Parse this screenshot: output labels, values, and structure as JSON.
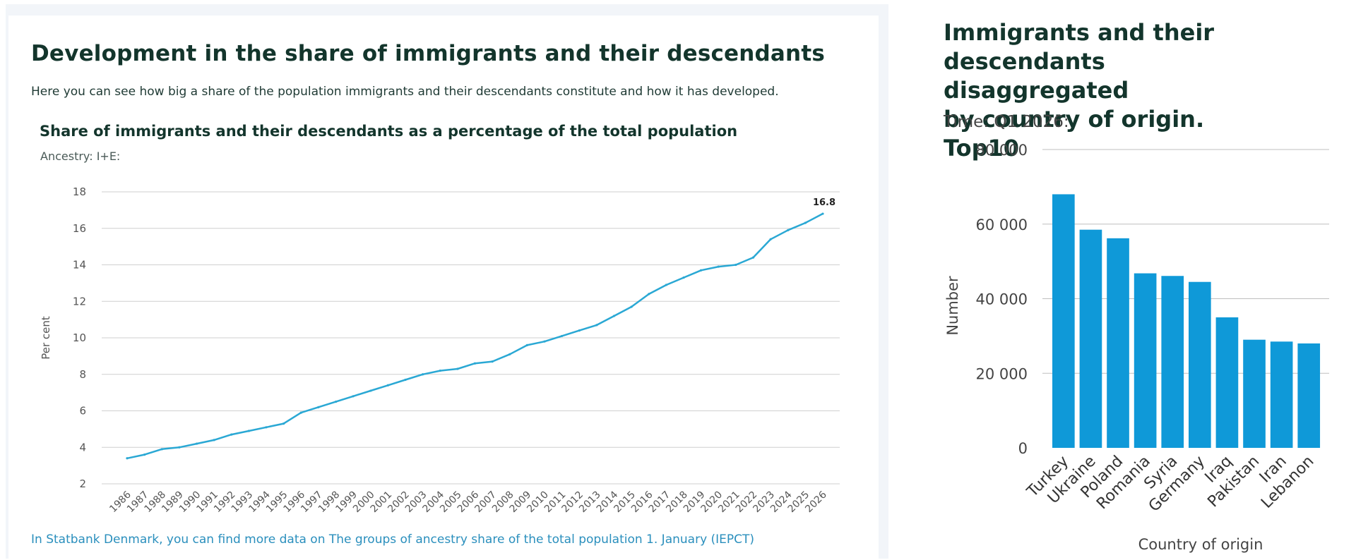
{
  "left": {
    "section_title": "Development in the share of immigrants and their descendants",
    "intro": "Here you can see how big a share of the population immigrants and their descendants constitute and how it has developed.",
    "link": "In Statbank Denmark, you can find more data on The groups of ancestry share of the total population 1. January (IEPCT)"
  },
  "right": {
    "title_lines": [
      "Immigrants and their",
      "descendants disaggregated",
      "by country of origin. Top10"
    ],
    "subtitle": "Time: Q1 2026:"
  },
  "colors": {
    "line": "#2aa8d4",
    "bar": "#0f99d8",
    "grid": "#cfcfcf"
  },
  "chart_data": [
    {
      "type": "line",
      "title": "Share of immigrants and their descendants as a percentage of the total population",
      "subtitle": "Ancestry: I+E:",
      "xlabel": "",
      "ylabel": "Per cent",
      "ylim": [
        2,
        18
      ],
      "yticks": [
        2,
        4,
        6,
        8,
        10,
        12,
        14,
        16,
        18
      ],
      "grid": true,
      "x": [
        "1986",
        "1987",
        "1988",
        "1989",
        "1990",
        "1991",
        "1992",
        "1993",
        "1994",
        "1995",
        "1996",
        "1997",
        "1998",
        "1999",
        "2000",
        "2001",
        "2002",
        "2003",
        "2004",
        "2005",
        "2006",
        "2007",
        "2008",
        "2009",
        "2010",
        "2011",
        "2012",
        "2013",
        "2014",
        "2015",
        "2016",
        "2017",
        "2018",
        "2019",
        "2020",
        "2021",
        "2022",
        "2023",
        "2024",
        "2025",
        "2026"
      ],
      "values": [
        3.4,
        3.6,
        3.9,
        4.0,
        4.2,
        4.4,
        4.7,
        4.9,
        5.1,
        5.3,
        5.9,
        6.2,
        6.5,
        6.8,
        7.1,
        7.4,
        7.7,
        8.0,
        8.2,
        8.3,
        8.6,
        8.7,
        9.1,
        9.6,
        9.8,
        10.1,
        10.4,
        10.7,
        11.2,
        11.7,
        12.4,
        12.9,
        13.3,
        13.7,
        13.9,
        14.0,
        14.4,
        15.4,
        15.9,
        16.3,
        16.8
      ],
      "annotations": [
        {
          "x": "2026",
          "label": "16.8"
        }
      ]
    },
    {
      "type": "bar",
      "xlabel": "Country of origin",
      "ylabel": "Number",
      "ylim": [
        0,
        80000
      ],
      "yticks": [
        0,
        20000,
        40000,
        60000,
        80000
      ],
      "ytick_labels": [
        "0",
        "20 000",
        "40 000",
        "60 000",
        "80 000"
      ],
      "grid": true,
      "categories": [
        "Turkey",
        "Ukraine",
        "Poland",
        "Romania",
        "Syria",
        "Germany",
        "Iraq",
        "Pakistan",
        "Iran",
        "Lebanon"
      ],
      "values": [
        68000,
        58500,
        56200,
        46800,
        46100,
        44500,
        35000,
        29000,
        28500,
        28000
      ]
    }
  ]
}
